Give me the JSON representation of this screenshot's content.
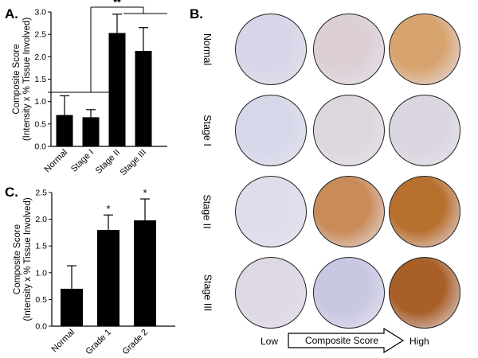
{
  "panel_a": {
    "letter": "A.",
    "significance": "**"
  },
  "panel_b": {
    "letter": "B.",
    "rows": [
      "Normal",
      "Stage I",
      "Stage II",
      "Stage III"
    ],
    "scale": {
      "low": "Low",
      "label": "Composite Score",
      "high": "High"
    },
    "core_shades": [
      [
        "#d9d4e8",
        "#dcd0d6",
        "#d7a46f"
      ],
      [
        "#d6d8ea",
        "#ddd6dc",
        "#dad5de"
      ],
      [
        "#e0dcec",
        "#c98b58",
        "#b8702f"
      ],
      [
        "#ddd8e4",
        "#c8c8e2",
        "#a85f28"
      ]
    ]
  },
  "panel_c": {
    "letter": "C."
  },
  "chart_data": [
    {
      "type": "bar",
      "categories": [
        "Normal",
        "Stage I",
        "Stage II",
        "Stage III"
      ],
      "values": [
        0.7,
        0.65,
        2.53,
        2.13
      ],
      "errors": [
        0.43,
        0.17,
        0.42,
        0.52
      ],
      "ylabel": "Composite Score",
      "ylabel2": "(Intensity x % Tissue Involved)",
      "ylim": [
        0,
        3.0
      ],
      "yticks": [
        "0.0",
        "0.5",
        "1.0",
        "1.5",
        "2.0",
        "2.5",
        "3.0"
      ],
      "annotation": "**"
    },
    {
      "type": "bar",
      "categories": [
        "Normal",
        "Grade 1",
        "Grade 2"
      ],
      "values": [
        0.7,
        1.8,
        1.98
      ],
      "errors": [
        0.43,
        0.28,
        0.4
      ],
      "ylabel": "Composite Score",
      "ylabel2": "(Intensity x % Tissue Involved)",
      "ylim": [
        0,
        2.5
      ],
      "yticks": [
        "0.0",
        "0.5",
        "1.0",
        "1.5",
        "2.0",
        "2.5"
      ],
      "annotations": [
        "",
        "*",
        "*"
      ]
    }
  ]
}
